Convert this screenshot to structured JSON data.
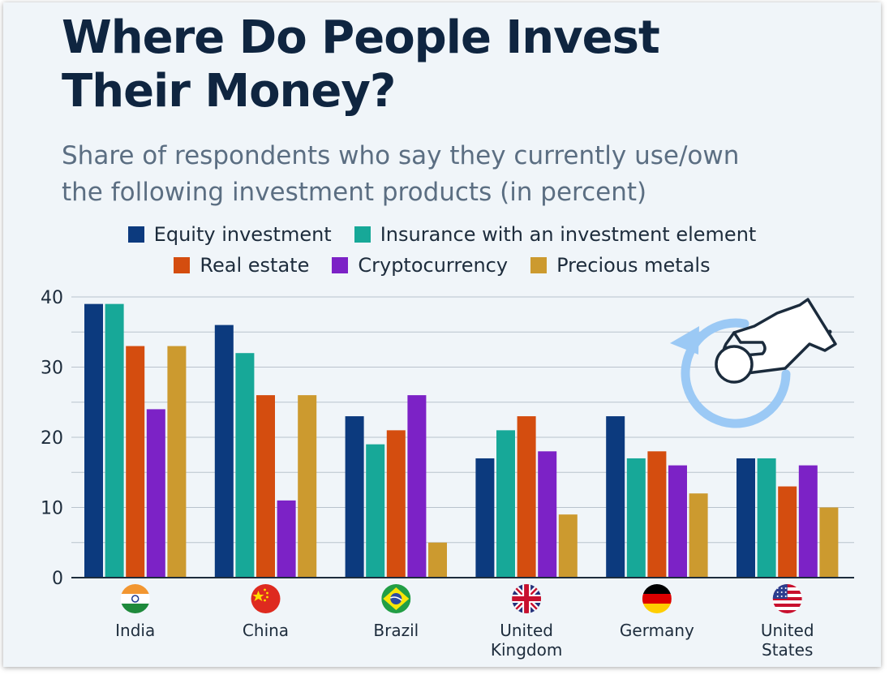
{
  "title_line1": "Where Do People Invest",
  "title_line2": "Their Money?",
  "subtitle_line1": "Share of respondents who say they currently use/own",
  "subtitle_line2": "the following investment products (in percent)",
  "legend_rows": [
    [
      "Equity investment",
      "Insurance with an investment element"
    ],
    [
      "Real estate",
      "Cryptocurrency",
      "Precious metals"
    ]
  ],
  "flag_icons": [
    "india-flag-icon",
    "china-flag-icon",
    "brazil-flag-icon",
    "united-kingdom-flag-icon",
    "germany-flag-icon",
    "united-states-flag-icon"
  ],
  "decor_icon": "hand-coin-cycle-icon",
  "chart_data": {
    "type": "bar",
    "categories": [
      "India",
      "China",
      "Brazil",
      "United Kingdom",
      "Germany",
      "United States"
    ],
    "category_label_lines": [
      [
        "India"
      ],
      [
        "China"
      ],
      [
        "Brazil"
      ],
      [
        "United",
        "Kingdom"
      ],
      [
        "Germany"
      ],
      [
        "United",
        "States"
      ]
    ],
    "series": [
      {
        "name": "Equity investment",
        "color": "#0c3a7e",
        "values": [
          39,
          36,
          23,
          17,
          23,
          17
        ]
      },
      {
        "name": "Insurance with an investment element",
        "color": "#17a898",
        "values": [
          39,
          32,
          19,
          21,
          17,
          17
        ]
      },
      {
        "name": "Real estate",
        "color": "#d44d0f",
        "values": [
          33,
          26,
          21,
          23,
          18,
          13
        ]
      },
      {
        "name": "Cryptocurrency",
        "color": "#7c22c6",
        "values": [
          24,
          11,
          26,
          18,
          16,
          16
        ]
      },
      {
        "name": "Precious metals",
        "color": "#cc9a2f",
        "values": [
          33,
          26,
          5,
          9,
          12,
          10
        ]
      }
    ],
    "yticks": [
      0,
      10,
      20,
      30,
      40
    ],
    "ylim": [
      0,
      40
    ],
    "grid": true,
    "legend_position": "top-center"
  }
}
